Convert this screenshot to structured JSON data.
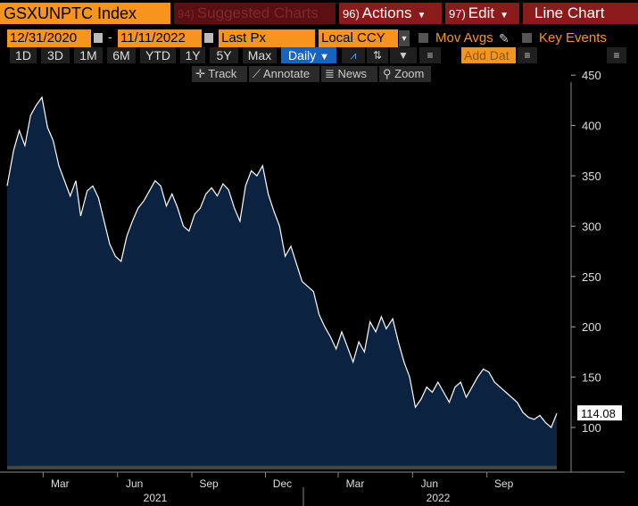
{
  "toolbar": {
    "ticker": "GSXUNPTC Index",
    "suggested": {
      "num": "94)",
      "label": "Suggested Charts"
    },
    "actions": {
      "num": "96)",
      "label": "Actions"
    },
    "edit": {
      "num": "97)",
      "label": "Edit"
    },
    "chart_type": "Line Chart"
  },
  "controls": {
    "start_date": "12/31/2020",
    "end_date": "11/11/2022",
    "date_sep": "-",
    "field": "Last Px",
    "currency": "Local CCY",
    "mov_avgs": "Mov Avgs",
    "key_events": "Key Events"
  },
  "periods": [
    "1D",
    "3D",
    "1M",
    "6M",
    "YTD",
    "1Y",
    "5Y",
    "Max"
  ],
  "frequency": "Daily",
  "add_data_placeholder": "Add Dat",
  "tools": {
    "track": "Track",
    "annotate": "Annotate",
    "news": "News",
    "zoom": "Zoom"
  },
  "colors": {
    "accent": "#f7941d",
    "selected": "#1565c0",
    "area": "#0b2240",
    "line": "#ffffff"
  },
  "chart_data": {
    "type": "area",
    "title": "",
    "xlabel": "",
    "ylabel": "",
    "y_ticks": [
      100,
      150,
      200,
      250,
      300,
      350,
      400,
      450
    ],
    "ylim": [
      50,
      455
    ],
    "x_tick_labels": [
      "Mar",
      "Jun",
      "Sep",
      "Dec",
      "Mar",
      "Jun",
      "Sep"
    ],
    "year_labels": [
      "2021",
      "2022"
    ],
    "last_value_label": "114.08",
    "grid": false,
    "series": [
      {
        "name": "",
        "x": [
          "2020-12-31",
          "2021-01-08",
          "2021-01-15",
          "2021-01-22",
          "2021-01-29",
          "2021-02-05",
          "2021-02-12",
          "2021-02-19",
          "2021-02-26",
          "2021-03-05",
          "2021-03-12",
          "2021-03-19",
          "2021-03-26",
          "2021-04-01",
          "2021-04-09",
          "2021-04-16",
          "2021-04-23",
          "2021-04-30",
          "2021-05-07",
          "2021-05-14",
          "2021-05-21",
          "2021-05-28",
          "2021-06-04",
          "2021-06-11",
          "2021-06-18",
          "2021-06-25",
          "2021-07-02",
          "2021-07-09",
          "2021-07-16",
          "2021-07-23",
          "2021-07-30",
          "2021-08-06",
          "2021-08-13",
          "2021-08-20",
          "2021-08-27",
          "2021-09-03",
          "2021-09-10",
          "2021-09-17",
          "2021-09-24",
          "2021-10-01",
          "2021-10-08",
          "2021-10-15",
          "2021-10-22",
          "2021-10-29",
          "2021-11-05",
          "2021-11-12",
          "2021-11-19",
          "2021-11-26",
          "2021-12-03",
          "2021-12-10",
          "2021-12-17",
          "2021-12-23",
          "2021-12-31",
          "2022-01-07",
          "2022-01-14",
          "2022-01-21",
          "2022-01-28",
          "2022-02-04",
          "2022-02-11",
          "2022-02-18",
          "2022-02-25",
          "2022-03-04",
          "2022-03-11",
          "2022-03-18",
          "2022-03-25",
          "2022-04-01",
          "2022-04-08",
          "2022-04-14",
          "2022-04-22",
          "2022-04-29",
          "2022-05-06",
          "2022-05-13",
          "2022-05-20",
          "2022-05-27",
          "2022-06-03",
          "2022-06-10",
          "2022-06-17",
          "2022-06-24",
          "2022-07-01",
          "2022-07-08",
          "2022-07-15",
          "2022-07-22",
          "2022-07-29",
          "2022-08-05",
          "2022-08-12",
          "2022-08-19",
          "2022-08-26",
          "2022-09-02",
          "2022-09-09",
          "2022-09-16",
          "2022-09-23",
          "2022-09-30",
          "2022-10-07",
          "2022-10-14",
          "2022-10-21",
          "2022-10-28",
          "2022-11-04",
          "2022-11-11"
        ],
        "values": [
          340,
          375,
          395,
          380,
          410,
          420,
          428,
          398,
          385,
          360,
          345,
          330,
          345,
          310,
          335,
          340,
          328,
          305,
          282,
          270,
          265,
          290,
          305,
          318,
          325,
          335,
          345,
          340,
          320,
          332,
          318,
          300,
          295,
          312,
          318,
          332,
          338,
          330,
          342,
          336,
          318,
          305,
          340,
          355,
          350,
          360,
          332,
          315,
          300,
          270,
          280,
          265,
          245,
          240,
          235,
          212,
          200,
          190,
          178,
          195,
          180,
          165,
          185,
          175,
          205,
          195,
          210,
          198,
          208,
          185,
          165,
          150,
          120,
          128,
          140,
          135,
          145,
          135,
          125,
          140,
          145,
          130,
          140,
          150,
          158,
          155,
          145,
          140,
          135,
          130,
          125,
          115,
          110,
          108,
          112,
          105,
          100,
          114
        ]
      }
    ]
  }
}
